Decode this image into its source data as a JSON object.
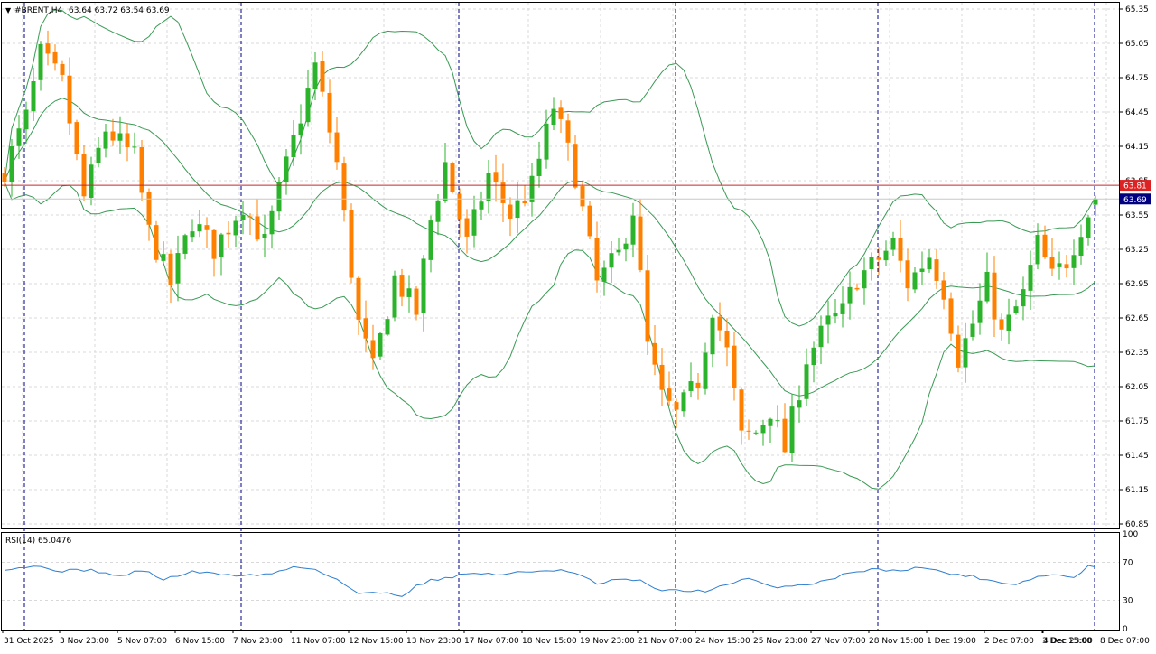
{
  "header": {
    "symbol": "#BRENT,H4",
    "ohlc": "63.64 63.72 63.54 63.69"
  },
  "price_axis": {
    "ticks": [
      "65.35",
      "65.05",
      "64.75",
      "64.45",
      "64.15",
      "63.85",
      "63.55",
      "63.25",
      "62.95",
      "62.65",
      "62.35",
      "62.05",
      "61.75",
      "61.45",
      "61.15",
      "60.85"
    ],
    "tick_values": [
      65.35,
      65.05,
      64.75,
      64.45,
      64.15,
      63.85,
      63.55,
      63.25,
      62.95,
      62.65,
      62.35,
      62.05,
      61.75,
      61.45,
      61.15,
      60.85
    ],
    "current_label": "63.69",
    "alert_label": "63.81"
  },
  "time_axis": {
    "labels": [
      "31 Oct 2025",
      "3 Nov 23:00",
      "5 Nov 07:00",
      "6 Nov 15:00",
      "7 Nov 23:00",
      "11 Nov 07:00",
      "12 Nov 15:00",
      "13 Nov 23:00",
      "17 Nov 07:00",
      "18 Nov 15:00",
      "19 Nov 23:00",
      "21 Nov 07:00",
      "24 Nov 15:00",
      "25 Nov 23:00",
      "27 Nov 07:00",
      "28 Nov 15:00",
      "1 Dec 19:00",
      "2 Dec 07:00",
      "3 Dec 15:00",
      "4 Dec 23:00",
      "8 Dec 07:00"
    ]
  },
  "indicator": {
    "label": "RSI(14) 65.0476",
    "ticks": [
      "100",
      "70",
      "30",
      "0"
    ],
    "tick_values": [
      100,
      70,
      30,
      0
    ]
  },
  "colors": {
    "bull": "#2bb32b",
    "bear": "#ff8000",
    "bands": "#3a9a55",
    "rsi": "#2f7fd0",
    "alert_line": "#c82828",
    "current_line": "#c8c8c8",
    "period_sep": "#00008b",
    "grid": "#d8d8d8",
    "alert_bg": "#dc2222",
    "current_bg": "#000080"
  },
  "chart_data": {
    "type": "candlestick",
    "symbol": "#BRENT",
    "timeframe": "H4",
    "ylim": [
      60.8,
      65.4
    ],
    "close_anchors": [
      [
        0,
        63.95
      ],
      [
        3,
        64.4
      ],
      [
        5,
        64.95
      ],
      [
        8,
        64.7
      ],
      [
        11,
        63.7
      ],
      [
        14,
        64.3
      ],
      [
        18,
        64.05
      ],
      [
        20,
        63.4
      ],
      [
        23,
        62.95
      ],
      [
        26,
        63.5
      ],
      [
        29,
        63.25
      ],
      [
        33,
        63.65
      ],
      [
        36,
        63.3
      ],
      [
        40,
        64.2
      ],
      [
        43,
        64.85
      ],
      [
        46,
        64.0
      ],
      [
        49,
        62.6
      ],
      [
        51,
        62.2
      ],
      [
        54,
        63.0
      ],
      [
        57,
        62.7
      ],
      [
        59,
        63.5
      ],
      [
        61,
        64.0
      ],
      [
        64,
        63.3
      ],
      [
        67,
        63.9
      ],
      [
        70,
        63.55
      ],
      [
        73,
        63.8
      ],
      [
        76,
        64.5
      ],
      [
        79,
        63.9
      ],
      [
        82,
        62.95
      ],
      [
        85,
        63.2
      ],
      [
        87,
        63.6
      ],
      [
        89,
        62.4
      ],
      [
        91,
        61.95
      ],
      [
        93,
        61.8
      ],
      [
        96,
        62.1
      ],
      [
        98,
        62.75
      ],
      [
        100,
        62.35
      ],
      [
        102,
        61.6
      ],
      [
        104,
        61.65
      ],
      [
        106,
        61.85
      ],
      [
        108,
        61.5
      ],
      [
        111,
        62.3
      ],
      [
        114,
        62.6
      ],
      [
        116,
        62.7
      ],
      [
        118,
        63.0
      ],
      [
        120,
        63.1
      ],
      [
        123,
        63.3
      ],
      [
        125,
        62.95
      ],
      [
        128,
        63.2
      ],
      [
        130,
        62.9
      ],
      [
        132,
        62.3
      ],
      [
        134,
        62.6
      ],
      [
        136,
        62.95
      ],
      [
        138,
        62.5
      ],
      [
        141,
        62.85
      ],
      [
        143,
        63.3
      ],
      [
        145,
        63.0
      ],
      [
        147,
        63.15
      ],
      [
        149,
        63.45
      ],
      [
        151,
        63.69
      ]
    ],
    "rsi_anchors": [
      [
        0,
        63
      ],
      [
        4,
        66
      ],
      [
        8,
        61
      ],
      [
        12,
        62
      ],
      [
        16,
        55
      ],
      [
        19,
        62
      ],
      [
        22,
        52
      ],
      [
        26,
        60
      ],
      [
        29,
        58
      ],
      [
        33,
        56
      ],
      [
        37,
        58
      ],
      [
        40,
        65
      ],
      [
        43,
        63
      ],
      [
        46,
        52
      ],
      [
        49,
        37
      ],
      [
        53,
        38
      ],
      [
        55,
        35
      ],
      [
        57,
        45
      ],
      [
        59,
        51
      ],
      [
        62,
        55
      ],
      [
        65,
        59
      ],
      [
        68,
        57
      ],
      [
        71,
        59
      ],
      [
        74,
        61
      ],
      [
        77,
        62
      ],
      [
        80,
        55
      ],
      [
        82,
        47
      ],
      [
        85,
        52
      ],
      [
        88,
        50
      ],
      [
        91,
        40
      ],
      [
        94,
        40
      ],
      [
        97,
        40
      ],
      [
        100,
        46
      ],
      [
        103,
        53
      ],
      [
        106,
        44
      ],
      [
        109,
        45
      ],
      [
        112,
        48
      ],
      [
        115,
        54
      ],
      [
        118,
        61
      ],
      [
        121,
        63
      ],
      [
        124,
        60
      ],
      [
        126,
        66
      ],
      [
        129,
        61
      ],
      [
        131,
        58
      ],
      [
        134,
        55
      ],
      [
        137,
        50
      ],
      [
        140,
        47
      ],
      [
        143,
        55
      ],
      [
        146,
        57
      ],
      [
        148,
        53
      ],
      [
        150,
        67
      ],
      [
        152,
        68
      ]
    ],
    "rsi_value": 65.0476,
    "bars_visible": 152
  }
}
